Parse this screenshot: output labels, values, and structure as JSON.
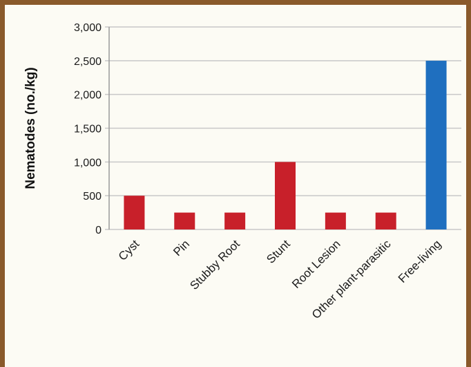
{
  "chart_data": {
    "type": "bar",
    "categories": [
      "Cyst",
      "Pin",
      "Stubby Root",
      "Stunt",
      "Root Lesion",
      "Other plant-parasitic",
      "Free-living"
    ],
    "values": [
      500,
      250,
      250,
      1000,
      250,
      250,
      2500
    ],
    "bar_colors": [
      "#c8202a",
      "#c8202a",
      "#c8202a",
      "#c8202a",
      "#c8202a",
      "#c8202a",
      "#1f6fbf"
    ],
    "ylabel": "Nematodes (no./kg)",
    "xlabel": "",
    "ylim": [
      0,
      3000
    ],
    "yticks": [
      0,
      500,
      1000,
      1500,
      2000,
      2500,
      3000
    ],
    "ytick_labels": [
      "0",
      "500",
      "1,000",
      "1,500",
      "2,000",
      "2,500",
      "3,000"
    ],
    "grid": true
  },
  "colors": {
    "frame_border": "#8a5a2b",
    "background": "#fcfbf4",
    "grid": "#c8c8c8"
  }
}
